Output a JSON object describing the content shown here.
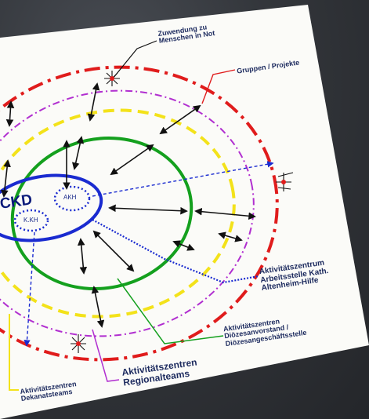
{
  "diagram": {
    "center": {
      "ckd": "CKD",
      "akh": "AKH",
      "kkh": "K.KH"
    },
    "labels": {
      "zuwendung": "Zuwendung zu\nMenschen in Not",
      "gruppen": "Gruppen / Projekte",
      "arbeitsstelle": "Aktivitätszentrum\nArbeitsstelle Kath.\nAltenheim-Hilfe",
      "dioezesan": "Aktivitätszentren\nDiözesanvorstand /\nDiözesangeschäftsstelle",
      "regional": "Aktivitätszentren\nRegionalteams",
      "dekanat": "Aktivitätszentren\nDekanatsteams"
    },
    "colors": {
      "red": "#e01c1c",
      "purple": "#b12fd0",
      "yellow": "#f3e21a",
      "green": "#14a01e",
      "blue": "#1a2bd0",
      "text": "#1c2a5e"
    }
  }
}
